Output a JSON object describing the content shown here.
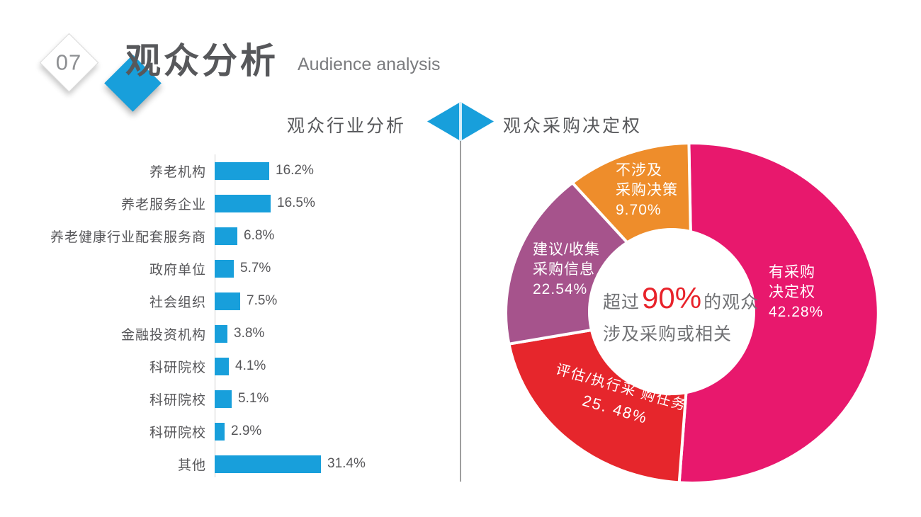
{
  "header": {
    "badge_number": "07",
    "title_zh": "观众分析",
    "title_en": "Audience analysis"
  },
  "colors": {
    "accent_blue": "#189FDB",
    "pink": "#E8186D",
    "red": "#E6262C",
    "purple": "#A6538C",
    "orange": "#EE8D2B",
    "highlight_red": "#E8232B",
    "text_dark": "#57585B",
    "text_gray": "#7A7B7E",
    "divider_gray": "#9E9E9E"
  },
  "chart_data": [
    {
      "type": "bar",
      "orientation": "horizontal",
      "title": "观众行业分析",
      "xlabel": "",
      "ylabel": "",
      "xlim": [
        0,
        31.4
      ],
      "grid": false,
      "bar_color": "#189FDB",
      "categories": [
        "养老机构",
        "养老服务企业",
        "养老健康行业配套服务商",
        "政府单位",
        "社会组织",
        "金融投资机构",
        "科研院校",
        "科研院校",
        "科研院校",
        "其他"
      ],
      "values": [
        16.2,
        16.5,
        6.8,
        5.7,
        7.5,
        3.8,
        4.1,
        5.1,
        2.9,
        31.4
      ],
      "value_labels": [
        "16.2%",
        "16.5%",
        "6.8%",
        "5.7%",
        "7.5%",
        "3.8%",
        "4.1%",
        "5.1%",
        "2.9%",
        "31.4%"
      ]
    },
    {
      "type": "pie",
      "subtype": "donut",
      "title": "观众采购决定权",
      "legend_position": "none",
      "labels_on_slices": true,
      "segments": [
        {
          "name": "有采购决定权",
          "value": 42.28,
          "color": "#E8186D",
          "label_lines": [
            "有采购",
            "决定权",
            "42.28%"
          ],
          "start_angle": -1,
          "end_angle": 184
        },
        {
          "name": "评估/执行采购任务",
          "value": 25.48,
          "color": "#E6262C",
          "label_lines": [
            "评估/执行采 购任务",
            "25. 48%"
          ],
          "start_angle": 184,
          "end_angle": 259.5
        },
        {
          "name": "建议/收集采购信息",
          "value": 22.54,
          "color": "#A6538C",
          "label_lines": [
            "建议/收集",
            "采购信息",
            "22.54%"
          ],
          "start_angle": 259.5,
          "end_angle": 320
        },
        {
          "name": "不涉及采购决策",
          "value": 9.7,
          "color": "#EE8D2B",
          "label_lines": [
            "不涉及",
            "采购决策",
            "9.70%"
          ],
          "start_angle": 320,
          "end_angle": 359
        }
      ],
      "center_callout": {
        "prefix": "超过",
        "highlight": "90%",
        "suffix": "的观众",
        "line2": "涉及采购或相关"
      }
    }
  ]
}
